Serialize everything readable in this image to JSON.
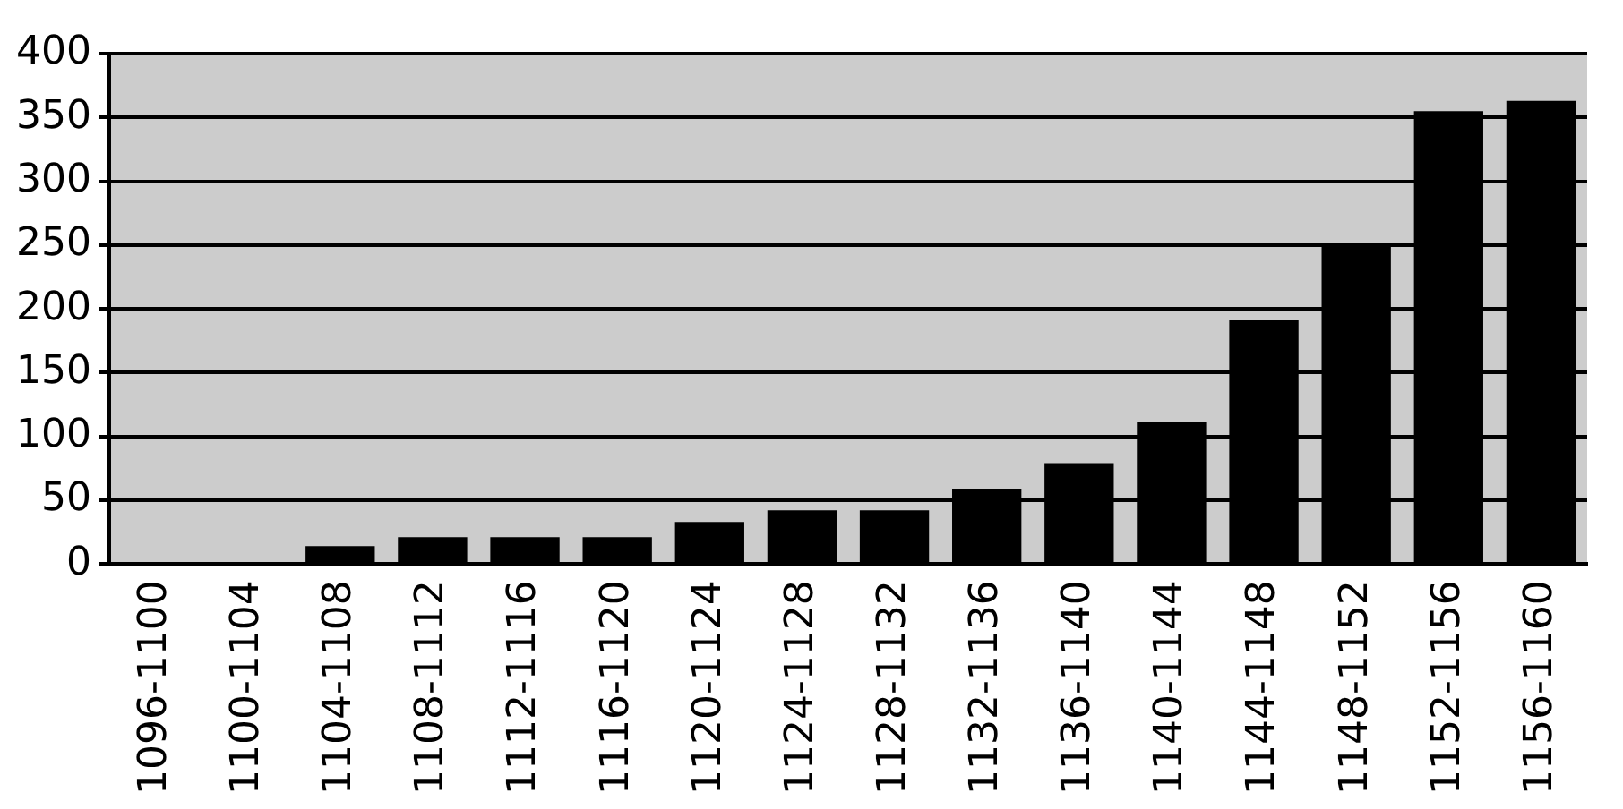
{
  "chart_data": {
    "type": "bar",
    "categories": [
      "1096-1100",
      "1100-1104",
      "1104-1108",
      "1108-1112",
      "1112-1116",
      "1116-1120",
      "1120-1124",
      "1124-1128",
      "1128-1132",
      "1132-1136",
      "1136-1140",
      "1140-1144",
      "1144-1148",
      "1148-1152",
      "1152-1156",
      "1156-1160"
    ],
    "values": [
      0,
      0,
      14,
      21,
      21,
      21,
      33,
      42,
      42,
      59,
      79,
      111,
      191,
      250,
      355,
      363
    ],
    "color": "#000000",
    "ylim": [
      0,
      400
    ],
    "yticks": [
      0,
      50,
      100,
      150,
      200,
      250,
      300,
      350,
      400
    ],
    "grid": "y",
    "legend": false
  }
}
